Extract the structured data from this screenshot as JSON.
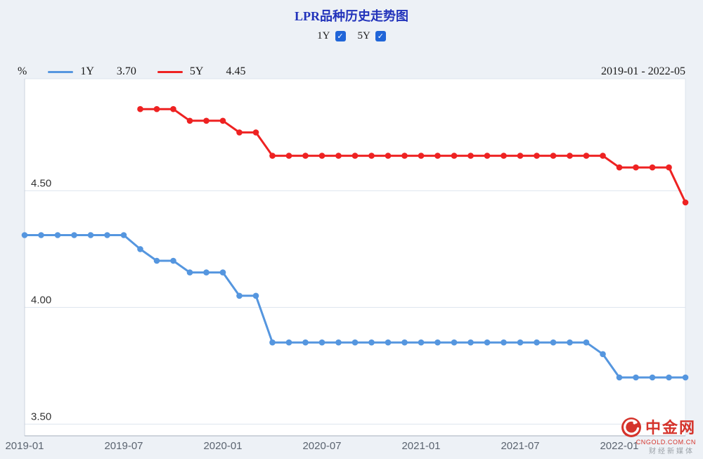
{
  "header": {
    "toggles": [
      {
        "label": "1Y",
        "checked": true
      },
      {
        "label": "5Y",
        "checked": true
      }
    ]
  },
  "icons": {
    "checkmark": "✓"
  },
  "legend": {
    "unit": "%",
    "items": [
      {
        "label": "1Y",
        "value": "3.70"
      },
      {
        "label": "5Y",
        "value": "4.45"
      }
    ],
    "date_range": "2019-01 - 2022-05"
  },
  "watermark": {
    "name": "中金网",
    "url": "CNGOLD.COM.CN",
    "subtitle": "财经新媒体"
  },
  "colors": {
    "background": "#edf1f6",
    "plot_bg": "#ffffff",
    "grid_line": "#dde4ee",
    "title_blue": "#2233bb",
    "checkbox_blue": "#2065d8",
    "watermark_red": "#d5332b",
    "watermark_gray": "#9aa0a6"
  },
  "chart_data": {
    "type": "line",
    "title": "LPR品种历史走势图",
    "ylabel_unit": "%",
    "grid": true,
    "legend_position": "top",
    "ylim": [
      3.45,
      4.98
    ],
    "yticks": [
      {
        "value": 4.5,
        "label": "4.50"
      },
      {
        "value": 4.0,
        "label": "4.00"
      },
      {
        "value": 3.5,
        "label": "3.50"
      }
    ],
    "xticks": [
      {
        "index": 0,
        "label": "2019-01"
      },
      {
        "index": 6,
        "label": "2019-07"
      },
      {
        "index": 12,
        "label": "2020-01"
      },
      {
        "index": 18,
        "label": "2020-07"
      },
      {
        "index": 24,
        "label": "2021-01"
      },
      {
        "index": 30,
        "label": "2021-07"
      },
      {
        "index": 36,
        "label": "2022-01"
      }
    ],
    "x": [
      "2019-01",
      "2019-02",
      "2019-03",
      "2019-04",
      "2019-05",
      "2019-06",
      "2019-07",
      "2019-08",
      "2019-09",
      "2019-10",
      "2019-11",
      "2019-12",
      "2020-01",
      "2020-02",
      "2020-03",
      "2020-04",
      "2020-05",
      "2020-06",
      "2020-07",
      "2020-08",
      "2020-09",
      "2020-10",
      "2020-11",
      "2020-12",
      "2021-01",
      "2021-02",
      "2021-03",
      "2021-04",
      "2021-05",
      "2021-06",
      "2021-07",
      "2021-08",
      "2021-09",
      "2021-10",
      "2021-11",
      "2021-12",
      "2022-01",
      "2022-02",
      "2022-03",
      "2022-04",
      "2022-05"
    ],
    "series": [
      {
        "name": "1Y",
        "color": "#5596df",
        "values": [
          4.31,
          4.31,
          4.31,
          4.31,
          4.31,
          4.31,
          4.31,
          4.25,
          4.2,
          4.2,
          4.15,
          4.15,
          4.15,
          4.05,
          4.05,
          3.85,
          3.85,
          3.85,
          3.85,
          3.85,
          3.85,
          3.85,
          3.85,
          3.85,
          3.85,
          3.85,
          3.85,
          3.85,
          3.85,
          3.85,
          3.85,
          3.85,
          3.85,
          3.85,
          3.85,
          3.8,
          3.7,
          3.7,
          3.7,
          3.7,
          3.7
        ]
      },
      {
        "name": "5Y",
        "color": "#ee2222",
        "values": [
          null,
          null,
          null,
          null,
          null,
          null,
          null,
          4.85,
          4.85,
          4.85,
          4.8,
          4.8,
          4.8,
          4.75,
          4.75,
          4.65,
          4.65,
          4.65,
          4.65,
          4.65,
          4.65,
          4.65,
          4.65,
          4.65,
          4.65,
          4.65,
          4.65,
          4.65,
          4.65,
          4.65,
          4.65,
          4.65,
          4.65,
          4.65,
          4.65,
          4.65,
          4.6,
          4.6,
          4.6,
          4.6,
          4.45
        ]
      }
    ]
  }
}
